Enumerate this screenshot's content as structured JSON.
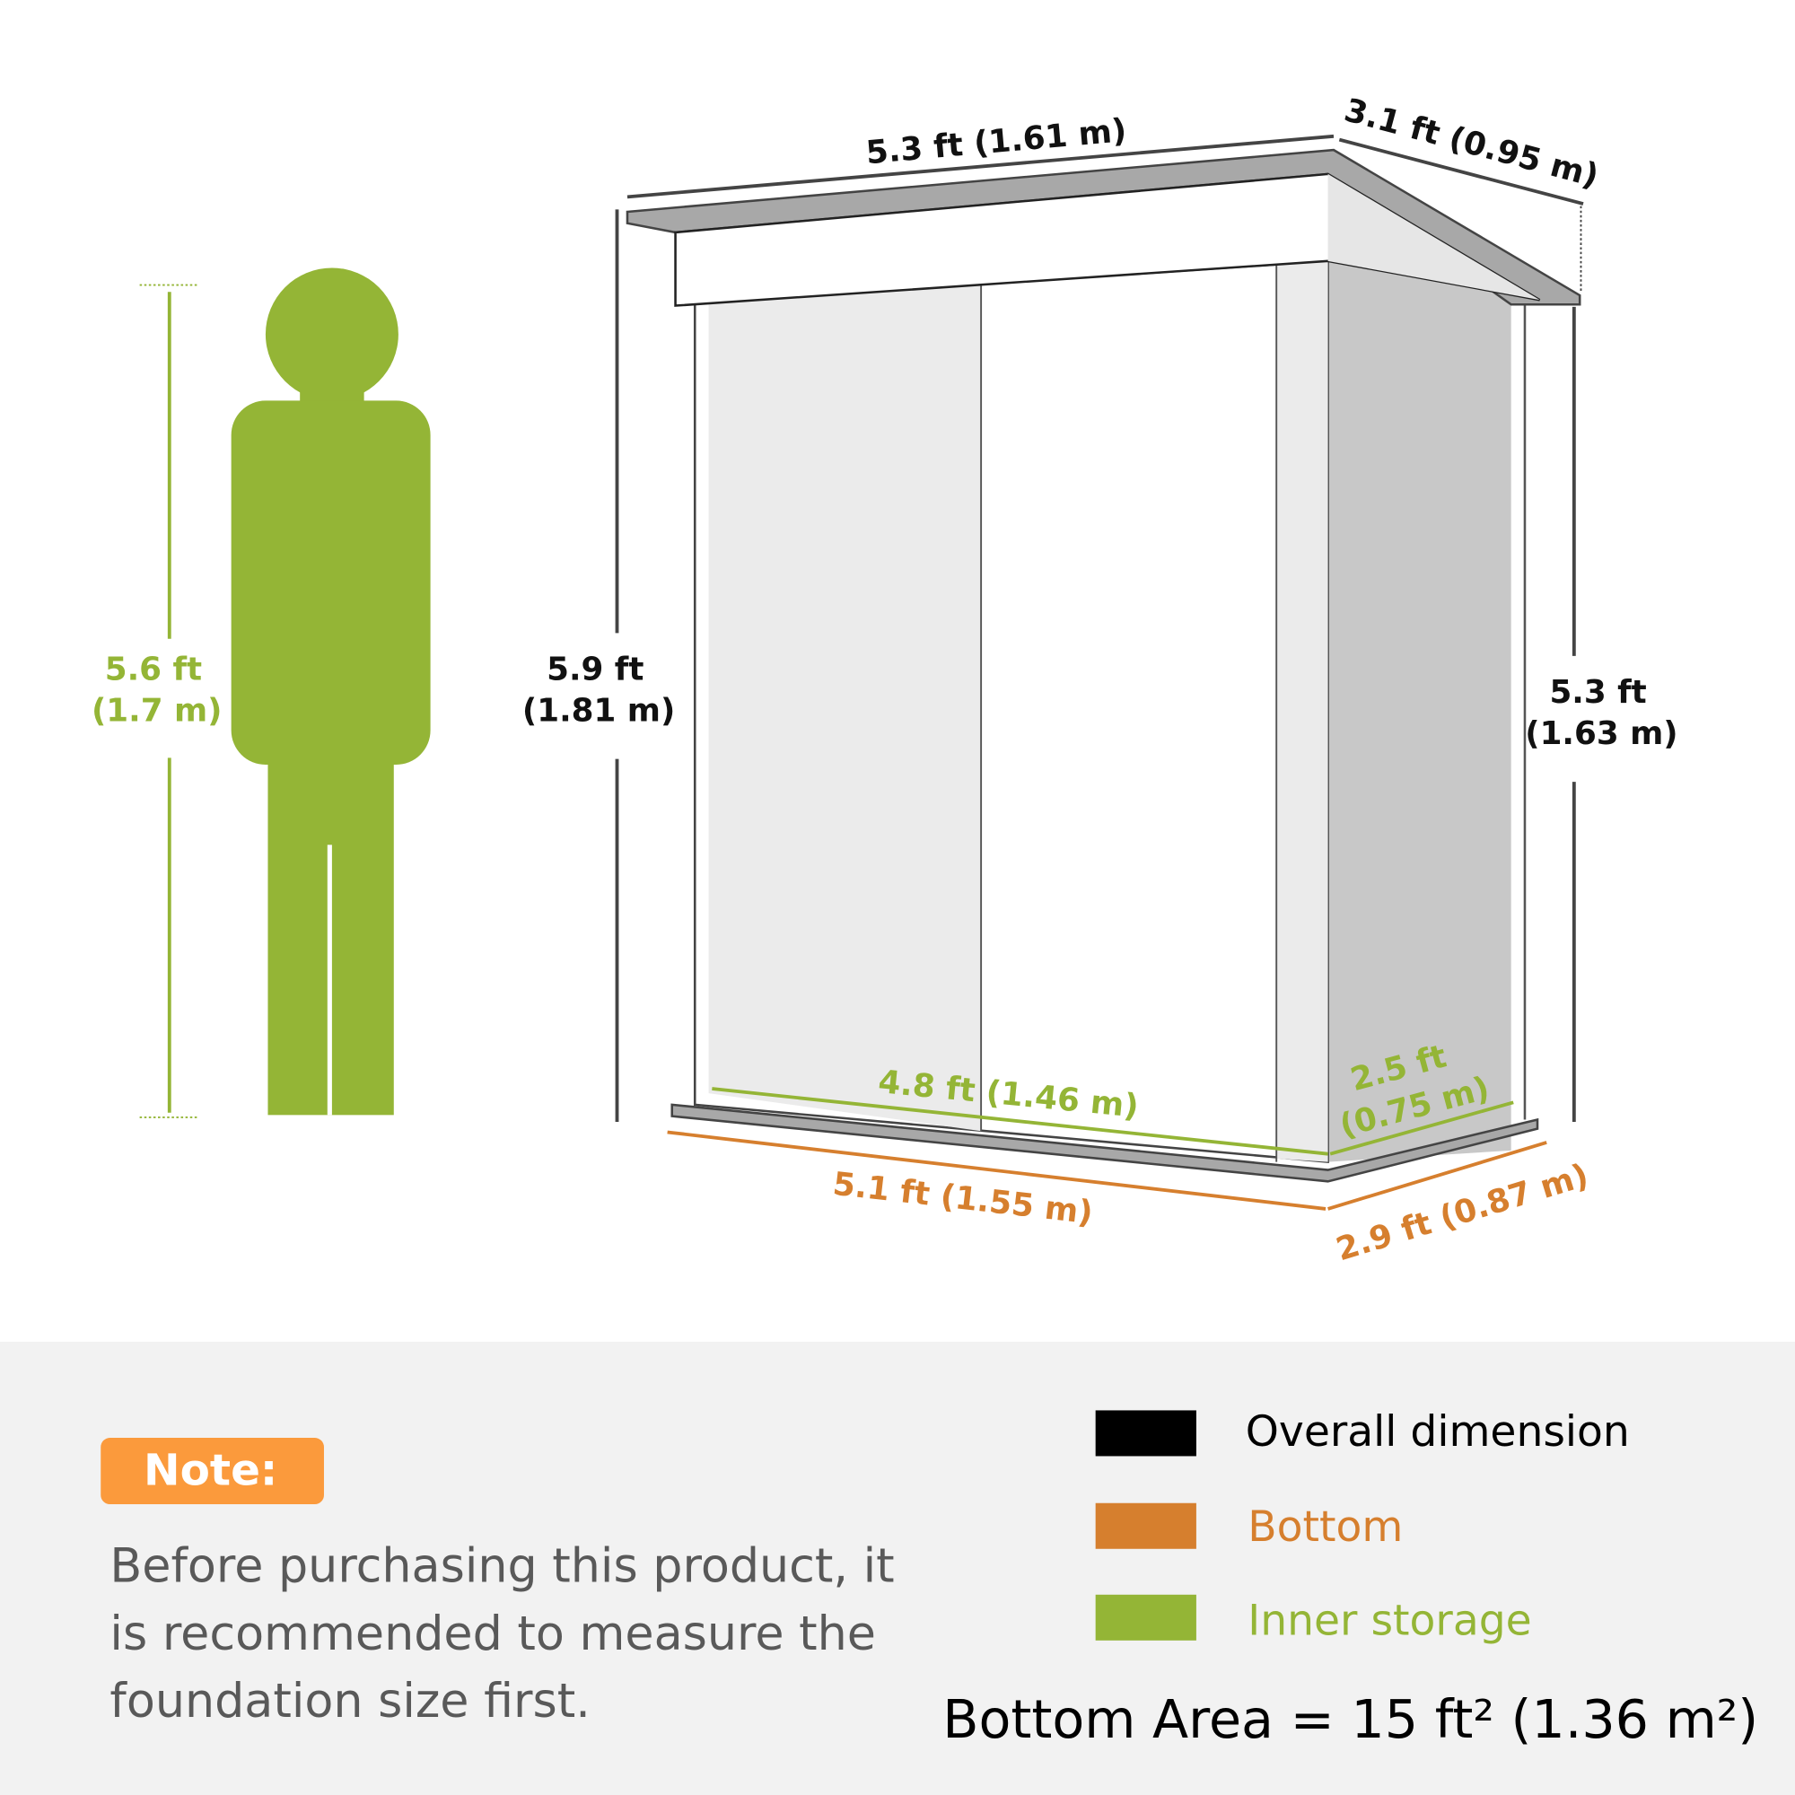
{
  "colors": {
    "overall": "#000000",
    "bottom": "#d67f2e",
    "inner": "#94b536",
    "note_bg": "#fb9a3c",
    "panel_bg": "#f2f2f2"
  },
  "person": {
    "height_ft": "5.6 ft",
    "height_m": "(1.7 m)"
  },
  "shed": {
    "top_width": "5.3 ft (1.61 m)",
    "top_depth": "3.1 ft (0.95 m)",
    "front_height_ft": "5.9 ft",
    "front_height_m": "(1.81 m)",
    "back_height_ft": "5.3 ft",
    "back_height_m": "(1.63 m)",
    "inner_width": "4.8 ft (1.46 m)",
    "inner_depth_ft": "2.5 ft",
    "inner_depth_m": "(0.75 m)",
    "bottom_width": "5.1 ft (1.55 m)",
    "bottom_depth": "2.9 ft (0.87 m)"
  },
  "note": {
    "label": "Note:",
    "lines": [
      "Before purchasing this product, it",
      "is recommended to measure the",
      "foundation size first."
    ]
  },
  "legend": [
    {
      "label": "Overall dimension",
      "color": "#000000"
    },
    {
      "label": "Bottom",
      "color": "#d67f2e"
    },
    {
      "label": "Inner storage",
      "color": "#94b536"
    }
  ],
  "bottom_area": "Bottom Area = 15 ft² (1.36 m²)"
}
